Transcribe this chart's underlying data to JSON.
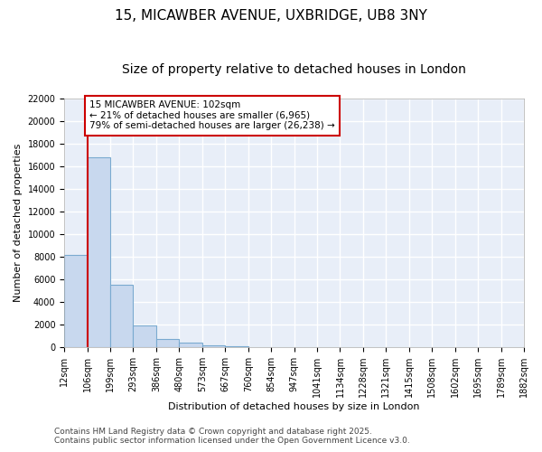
{
  "title1": "15, MICAWBER AVENUE, UXBRIDGE, UB8 3NY",
  "title2": "Size of property relative to detached houses in London",
  "xlabel": "Distribution of detached houses by size in London",
  "ylabel": "Number of detached properties",
  "bar_color": "#c8d8ee",
  "bar_edge_color": "#7aaad0",
  "background_color": "#e8eef8",
  "grid_color": "white",
  "bin_labels": [
    "12sqm",
    "106sqm",
    "199sqm",
    "293sqm",
    "386sqm",
    "480sqm",
    "573sqm",
    "667sqm",
    "760sqm",
    "854sqm",
    "947sqm",
    "1041sqm",
    "1134sqm",
    "1228sqm",
    "1321sqm",
    "1415sqm",
    "1508sqm",
    "1602sqm",
    "1695sqm",
    "1789sqm",
    "1882sqm"
  ],
  "values": [
    8200,
    16800,
    5500,
    1900,
    750,
    400,
    200,
    100,
    0,
    0,
    0,
    0,
    0,
    0,
    0,
    0,
    0,
    0,
    0,
    0
  ],
  "ylim": [
    0,
    22000
  ],
  "yticks": [
    0,
    2000,
    4000,
    6000,
    8000,
    10000,
    12000,
    14000,
    16000,
    18000,
    20000,
    22000
  ],
  "vline_bin_index": 1,
  "vline_color": "#cc0000",
  "annotation_text": "15 MICAWBER AVENUE: 102sqm\n← 21% of detached houses are smaller (6,965)\n79% of semi-detached houses are larger (26,238) →",
  "annotation_box_color": "#cc0000",
  "footer1": "Contains HM Land Registry data © Crown copyright and database right 2025.",
  "footer2": "Contains public sector information licensed under the Open Government Licence v3.0.",
  "title_fontsize": 11,
  "subtitle_fontsize": 10,
  "axis_label_fontsize": 8,
  "tick_fontsize": 7,
  "annotation_fontsize": 7.5,
  "footer_fontsize": 6.5
}
